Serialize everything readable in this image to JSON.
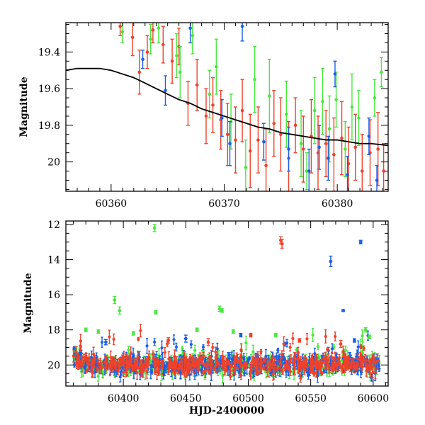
{
  "colors": {
    "red": "#f0412a",
    "green": "#49e83f",
    "blue": "#1b5fe6",
    "model": "#000000"
  },
  "chart_data": [
    {
      "type": "scatter",
      "panel": "top",
      "title": "",
      "xlabel": "",
      "ylabel": "Magnitude",
      "xlim": [
        60356,
        60384.5
      ],
      "ylim": [
        20.16,
        19.24
      ],
      "y_inverted": true,
      "x_ticks": [
        "60360",
        "60370",
        "60380"
      ],
      "x_tick_values": [
        60360,
        60370,
        60380
      ],
      "y_ticks": [
        "19.4",
        "19.6",
        "19.8",
        "20"
      ],
      "y_tick_values": [
        19.4,
        19.6,
        19.8,
        20.0
      ],
      "model_curve": {
        "color": "#000000",
        "x": [
          60356,
          60357,
          60358,
          60359,
          60360,
          60361,
          60362,
          60363,
          60364,
          60365,
          60366,
          60367,
          60368,
          60369,
          60370,
          60371,
          60372,
          60373,
          60374,
          60375,
          60376,
          60377,
          60378,
          60379,
          60380,
          60381,
          60382,
          60383,
          60384.5
        ],
        "y": [
          19.5,
          19.49,
          19.49,
          19.49,
          19.5,
          19.52,
          19.54,
          19.57,
          19.6,
          19.63,
          19.66,
          19.68,
          19.71,
          19.73,
          19.75,
          19.77,
          19.79,
          19.81,
          19.82,
          19.84,
          19.85,
          19.86,
          19.87,
          19.88,
          19.88,
          19.89,
          19.9,
          19.9,
          19.91
        ]
      },
      "series": [
        {
          "color": "red",
          "points": [
            {
              "x": 60360.8,
              "y": 19.26,
              "err": 0.05
            },
            {
              "x": 60361.9,
              "y": 19.32,
              "err": 0.1
            },
            {
              "x": 60362.5,
              "y": 19.51,
              "err": 0.12
            },
            {
              "x": 60363.2,
              "y": 19.4,
              "err": 0.09
            },
            {
              "x": 60363.7,
              "y": 19.28,
              "err": 0.07
            },
            {
              "x": 60364.6,
              "y": 19.36,
              "err": 0.1
            },
            {
              "x": 60365.4,
              "y": 19.45,
              "err": 0.12
            },
            {
              "x": 60366.0,
              "y": 19.37,
              "err": 0.1
            },
            {
              "x": 60366.8,
              "y": 19.68,
              "err": 0.12
            },
            {
              "x": 60367.6,
              "y": 19.58,
              "err": 0.14
            },
            {
              "x": 60368.4,
              "y": 19.75,
              "err": 0.15
            },
            {
              "x": 60369.0,
              "y": 19.69,
              "err": 0.15
            },
            {
              "x": 60369.7,
              "y": 19.77,
              "err": 0.16
            },
            {
              "x": 60370.3,
              "y": 19.85,
              "err": 0.17
            },
            {
              "x": 60371.0,
              "y": 19.88,
              "err": 0.18
            },
            {
              "x": 60371.6,
              "y": 19.72,
              "err": 0.17
            },
            {
              "x": 60372.3,
              "y": 19.94,
              "err": 0.2
            },
            {
              "x": 60373.0,
              "y": 19.88,
              "err": 0.18
            },
            {
              "x": 60373.7,
              "y": 20.02,
              "err": 0.2
            },
            {
              "x": 60374.4,
              "y": 19.79,
              "err": 0.18
            },
            {
              "x": 60375.0,
              "y": 19.85,
              "err": 0.2
            },
            {
              "x": 60375.7,
              "y": 19.98,
              "err": 0.2
            },
            {
              "x": 60376.3,
              "y": 19.8,
              "err": 0.15
            },
            {
              "x": 60377.0,
              "y": 19.93,
              "err": 0.18
            },
            {
              "x": 60377.7,
              "y": 19.86,
              "err": 0.2
            },
            {
              "x": 60378.3,
              "y": 19.95,
              "err": 0.2
            },
            {
              "x": 60379.0,
              "y": 19.9,
              "err": 0.18
            },
            {
              "x": 60379.7,
              "y": 19.96,
              "err": 0.2
            },
            {
              "x": 60380.4,
              "y": 19.87,
              "err": 0.2
            },
            {
              "x": 60381.0,
              "y": 20.01,
              "err": 0.2
            },
            {
              "x": 60381.6,
              "y": 19.92,
              "err": 0.18
            },
            {
              "x": 60382.2,
              "y": 20.05,
              "err": 0.2
            },
            {
              "x": 60382.9,
              "y": 19.95,
              "err": 0.18
            },
            {
              "x": 60383.6,
              "y": 19.93,
              "err": 0.2
            },
            {
              "x": 60384.1,
              "y": 20.05,
              "err": 0.15
            }
          ]
        },
        {
          "color": "green",
          "points": [
            {
              "x": 60361.0,
              "y": 19.29,
              "err": 0.06
            },
            {
              "x": 60363.5,
              "y": 19.33,
              "err": 0.08
            },
            {
              "x": 60364.2,
              "y": 19.27,
              "err": 0.08
            },
            {
              "x": 60365.8,
              "y": 19.42,
              "err": 0.12
            },
            {
              "x": 60366.1,
              "y": 19.51,
              "err": 0.14
            },
            {
              "x": 60367.2,
              "y": 19.31,
              "err": 0.1
            },
            {
              "x": 60368.7,
              "y": 19.63,
              "err": 0.13
            },
            {
              "x": 60369.3,
              "y": 19.48,
              "err": 0.15
            },
            {
              "x": 60370.6,
              "y": 19.78,
              "err": 0.15
            },
            {
              "x": 60371.9,
              "y": 20.03,
              "err": 0.15
            },
            {
              "x": 60372.7,
              "y": 19.55,
              "err": 0.18
            },
            {
              "x": 60374.0,
              "y": 19.64,
              "err": 0.2
            },
            {
              "x": 60375.5,
              "y": 19.74,
              "err": 0.18
            },
            {
              "x": 60376.8,
              "y": 19.9,
              "err": 0.18
            },
            {
              "x": 60377.3,
              "y": 20.05,
              "err": 0.1
            },
            {
              "x": 60378.0,
              "y": 19.72,
              "err": 0.18
            },
            {
              "x": 60378.7,
              "y": 19.67,
              "err": 0.18
            },
            {
              "x": 60379.3,
              "y": 19.82,
              "err": 0.18
            },
            {
              "x": 60379.9,
              "y": 19.66,
              "err": 0.15
            },
            {
              "x": 60380.7,
              "y": 19.93,
              "err": 0.15
            },
            {
              "x": 60381.3,
              "y": 19.7,
              "err": 0.18
            },
            {
              "x": 60381.9,
              "y": 19.76,
              "err": 0.15
            },
            {
              "x": 60383.3,
              "y": 19.65,
              "err": 0.1
            },
            {
              "x": 60383.9,
              "y": 19.51,
              "err": 0.08
            }
          ]
        },
        {
          "color": "blue",
          "points": [
            {
              "x": 60362.8,
              "y": 19.44,
              "err": 0.05
            },
            {
              "x": 60364.8,
              "y": 19.61,
              "err": 0.08
            },
            {
              "x": 60367.0,
              "y": 19.27,
              "err": 0.08
            },
            {
              "x": 60369.8,
              "y": 19.76,
              "err": 0.1
            },
            {
              "x": 60370.5,
              "y": 19.9,
              "err": 0.12
            },
            {
              "x": 60371.6,
              "y": 19.26,
              "err": 0.08
            },
            {
              "x": 60373.5,
              "y": 19.89,
              "err": 0.1
            },
            {
              "x": 60375.7,
              "y": 19.93,
              "err": 0.12
            },
            {
              "x": 60377.5,
              "y": 20.05,
              "err": 0.12
            },
            {
              "x": 60378.4,
              "y": 19.92,
              "err": 0.12
            },
            {
              "x": 60379.2,
              "y": 19.98,
              "err": 0.12
            },
            {
              "x": 60379.8,
              "y": 19.52,
              "err": 0.07
            },
            {
              "x": 60380.9,
              "y": 20.07,
              "err": 0.1
            },
            {
              "x": 60382.8,
              "y": 19.86,
              "err": 0.1
            },
            {
              "x": 60383.5,
              "y": 20.1,
              "err": 0.08
            }
          ]
        }
      ]
    },
    {
      "type": "scatter",
      "panel": "bottom",
      "title": "",
      "xlabel": "HJD-2400000",
      "ylabel": "Magnitude",
      "xlim": [
        60354,
        60612
      ],
      "ylim": [
        21.2,
        11.8
      ],
      "y_inverted": true,
      "x_ticks": [
        "60400",
        "60450",
        "60500",
        "60550",
        "60600"
      ],
      "x_tick_values": [
        60400,
        60450,
        60500,
        60550,
        60600
      ],
      "y_ticks": [
        "12",
        "14",
        "16",
        "18",
        "20"
      ],
      "y_tick_values": [
        12,
        14,
        16,
        18,
        20
      ],
      "baseline": {
        "description": "dense band of red, green and blue points near magnitude 20 spanning the full date range",
        "x_range": [
          60360,
          60605
        ],
        "center_mag": 20.0,
        "scatter_mag": 0.25,
        "points_per_series": 420
      },
      "series": [
        {
          "color": "red",
          "outliers": [
            {
              "x": 60527,
              "y": 13.1,
              "err": 0.25
            },
            {
              "x": 60526,
              "y": 12.9,
              "err": 0.2
            },
            {
              "x": 60502,
              "y": 18.3,
              "err": 0.1
            },
            {
              "x": 60468,
              "y": 18.7,
              "err": 0.2
            },
            {
              "x": 60436,
              "y": 18.6,
              "err": 0.15
            },
            {
              "x": 60541,
              "y": 18.6,
              "err": 0.1
            },
            {
              "x": 60574,
              "y": 18.8,
              "err": 0.2
            }
          ]
        },
        {
          "color": "green",
          "outliers": [
            {
              "x": 60425,
              "y": 12.2,
              "err": 0.2
            },
            {
              "x": 60393,
              "y": 16.3,
              "err": 0.2
            },
            {
              "x": 60397,
              "y": 16.9,
              "err": 0.2
            },
            {
              "x": 60426,
              "y": 17.0,
              "err": 0.1
            },
            {
              "x": 60477,
              "y": 16.8,
              "err": 0.15
            },
            {
              "x": 60479,
              "y": 16.9,
              "err": 0.1
            },
            {
              "x": 60370,
              "y": 18.0,
              "err": 0.1
            },
            {
              "x": 60380,
              "y": 18.1,
              "err": 0.1
            },
            {
              "x": 60408,
              "y": 18.2,
              "err": 0.1
            },
            {
              "x": 60459,
              "y": 18.0,
              "err": 0.1
            },
            {
              "x": 60488,
              "y": 18.1,
              "err": 0.1
            },
            {
              "x": 60522,
              "y": 18.3,
              "err": 0.1
            },
            {
              "x": 60594,
              "y": 18.0,
              "err": 0.12
            },
            {
              "x": 60597,
              "y": 18.4,
              "err": 0.1
            }
          ]
        },
        {
          "color": "blue",
          "outliers": [
            {
              "x": 60590,
              "y": 13.0,
              "err": 0.1
            },
            {
              "x": 60566,
              "y": 14.1,
              "err": 0.3
            },
            {
              "x": 60576,
              "y": 16.9,
              "err": 0.05
            },
            {
              "x": 60585,
              "y": 18.6,
              "err": 0.1
            },
            {
              "x": 60450,
              "y": 18.5,
              "err": 0.2
            },
            {
              "x": 60494,
              "y": 18.3,
              "err": 0.1
            },
            {
              "x": 60386,
              "y": 18.7,
              "err": 0.15
            }
          ]
        }
      ]
    }
  ]
}
